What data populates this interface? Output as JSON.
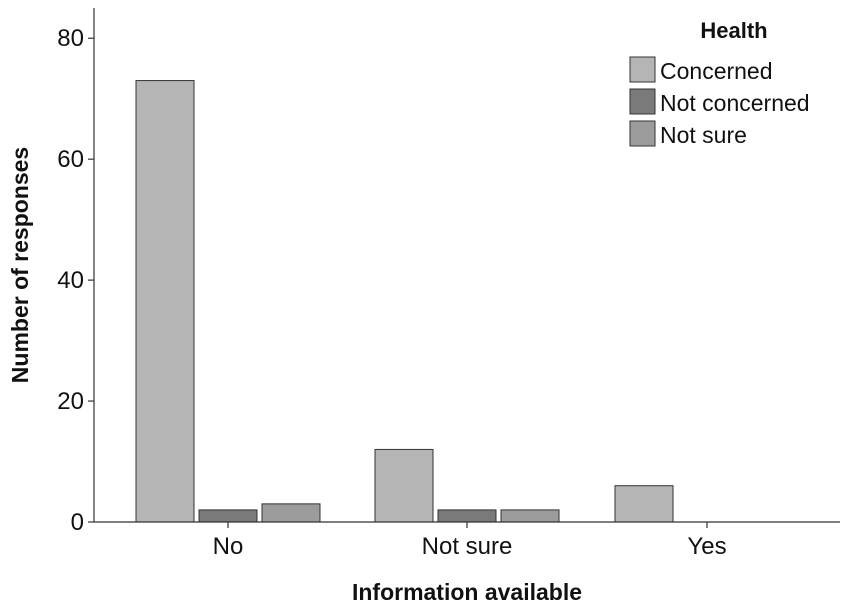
{
  "chart_data": {
    "type": "bar",
    "title": "",
    "xlabel": "Information available",
    "ylabel": "Number of responses",
    "categories": [
      "No",
      "Not sure",
      "Yes"
    ],
    "ylim": [
      0,
      85
    ],
    "yticks": [
      0,
      20,
      40,
      60,
      80
    ],
    "grid": false,
    "legend": {
      "title": "Health",
      "placement": "top-right"
    },
    "series": [
      {
        "name": "Concerned",
        "color": "#b5b5b5",
        "values": [
          73,
          12,
          6
        ]
      },
      {
        "name": "Not concerned",
        "color": "#7a7a7a",
        "values": [
          2,
          2,
          0
        ]
      },
      {
        "name": "Not sure",
        "color": "#9c9c9c",
        "values": [
          3,
          2,
          0
        ]
      }
    ]
  }
}
